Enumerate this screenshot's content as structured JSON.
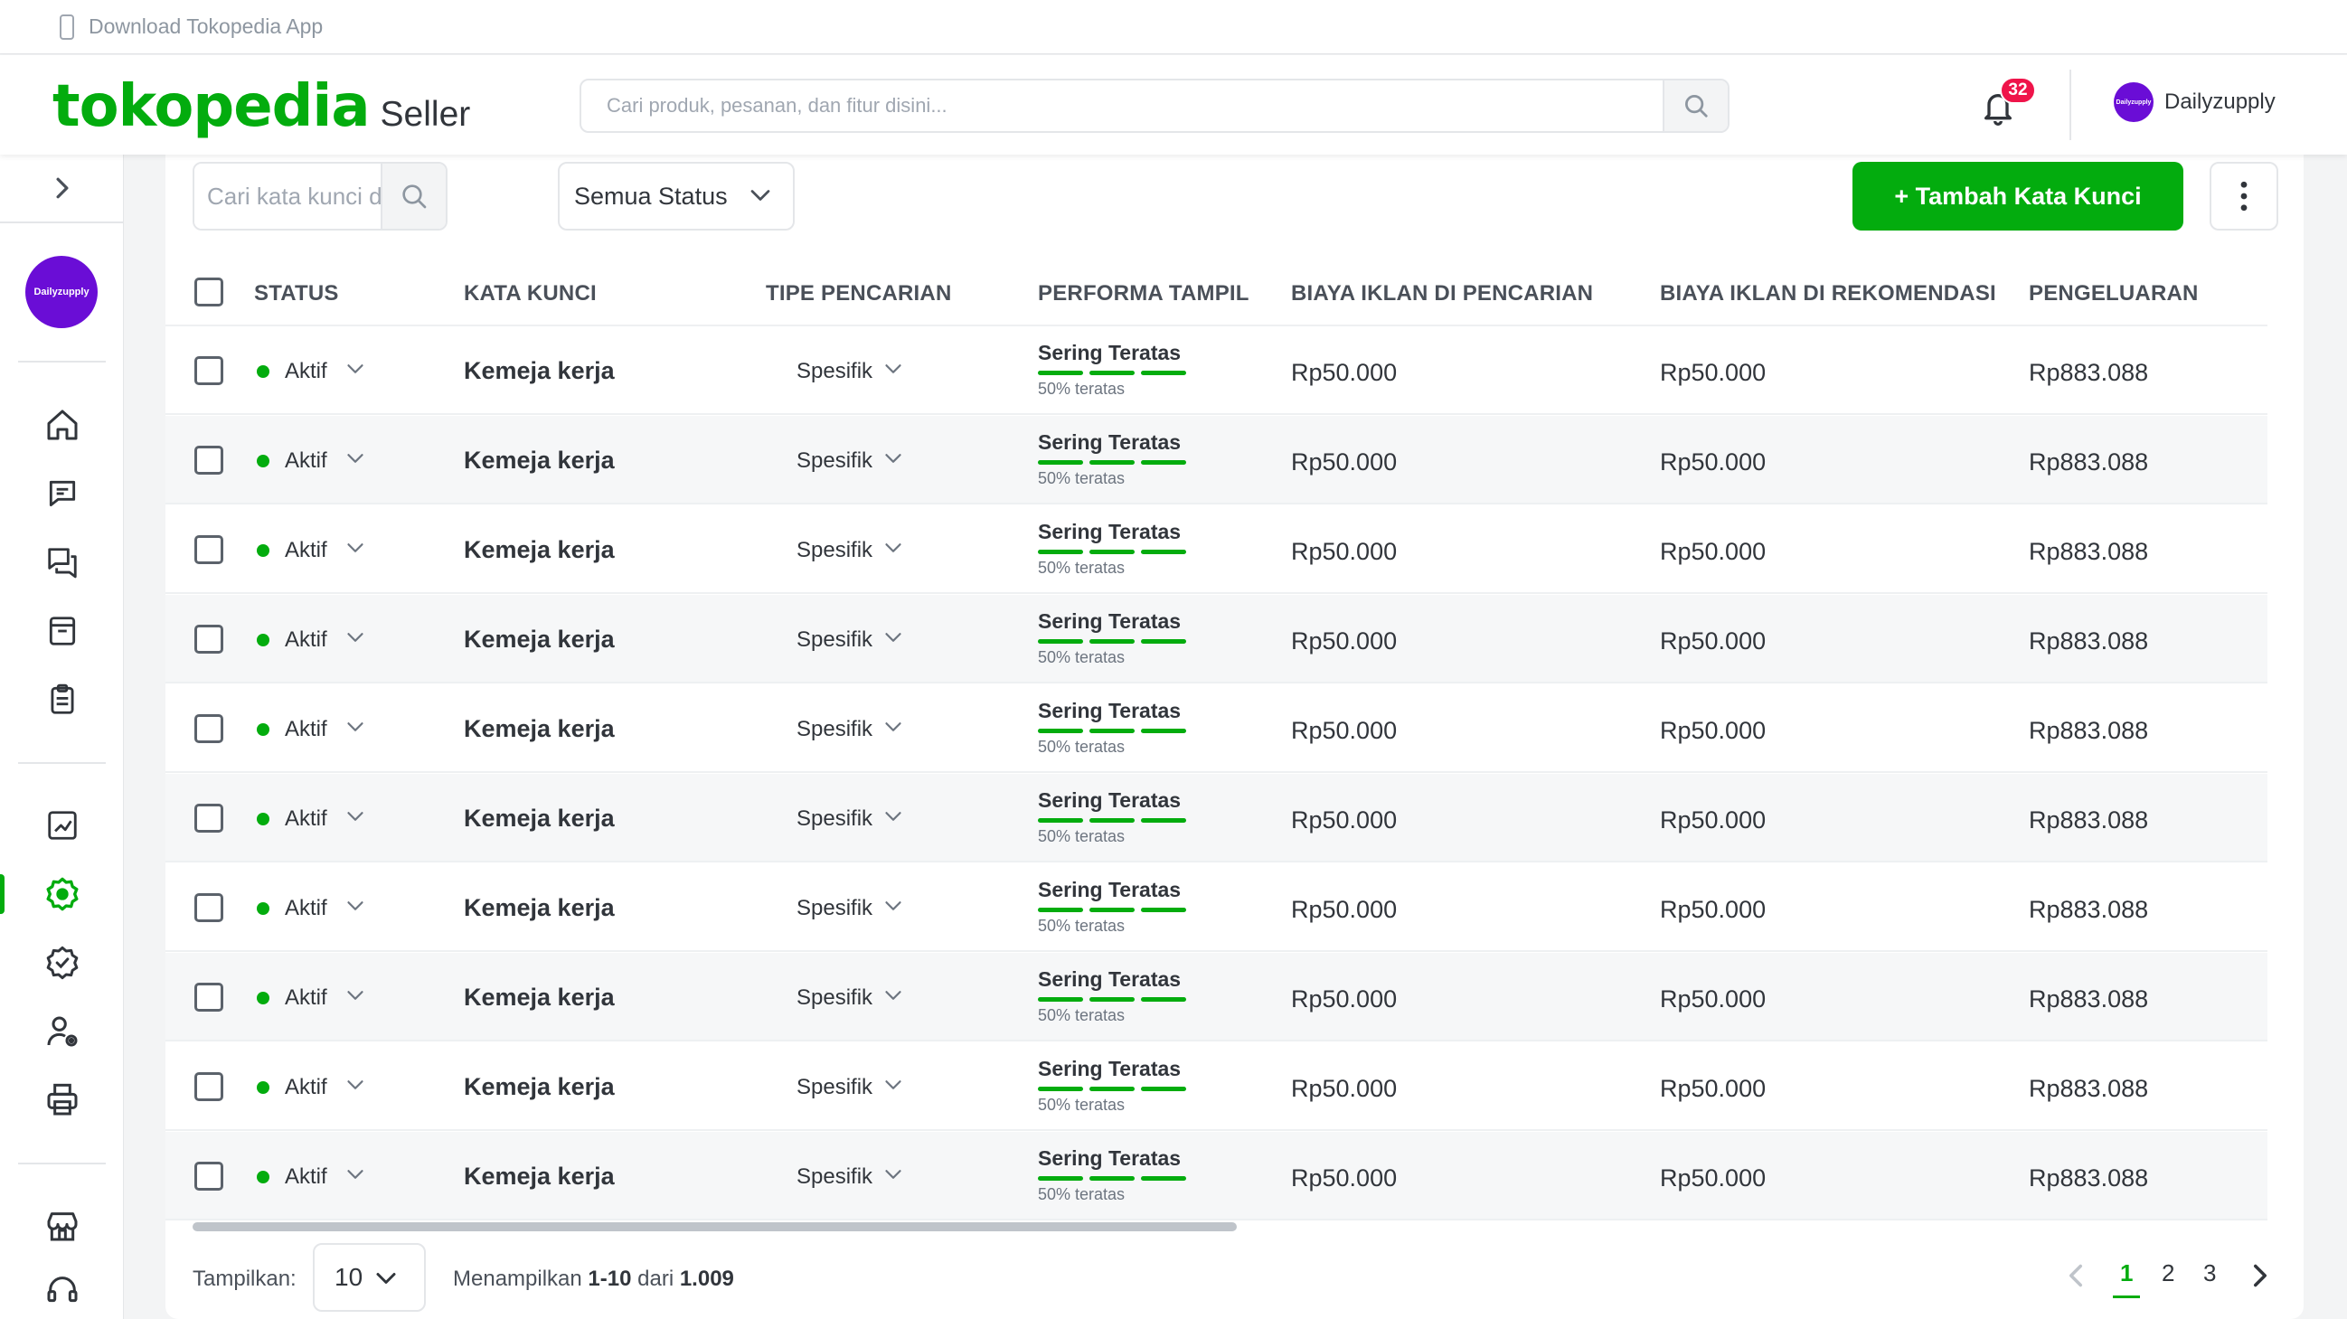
{
  "topstrip": {
    "download_label": "Download Tokopedia App",
    "icon": "phone-icon"
  },
  "header": {
    "logo_text": "tokopedia",
    "logo_suffix": "Seller",
    "search_placeholder": "Cari produk, pesanan, dan fitur disini...",
    "notification_count": "32",
    "shop_name": "Dailyzupply",
    "avatar_text": "Dailyzupply"
  },
  "sidebar": {
    "shop_avatar_text": "Dailyzupply",
    "icons": [
      "home-icon",
      "chat-icon",
      "discussion-icon",
      "product-box-icon",
      "order-list-icon",
      "statistic-icon",
      "ads-icon",
      "badge-icon",
      "user-gear-icon",
      "printer-icon",
      "shop-icon",
      "support-icon"
    ]
  },
  "toolbar": {
    "keyword_search_placeholder": "Cari kata kunci disini...",
    "status_filter": "Semua Status",
    "add_button": "+ Tambah Kata Kunci"
  },
  "table": {
    "headers": {
      "status": "STATUS",
      "keyword": "KATA KUNCI",
      "search_type": "TIPE PENCARIAN",
      "performance": "PERFORMA TAMPIL",
      "search_cost": "BIAYA IKLAN DI PENCARIAN",
      "reco_cost": "BIAYA IKLAN DI REKOMENDASI",
      "spending": "PENGELUARAN"
    },
    "rows": [
      {
        "status": "Aktif",
        "keyword": "Kemeja kerja",
        "type": "Spesifik",
        "perf_label": "Sering Teratas",
        "perf_sub": "50% teratas",
        "search_cost": "Rp50.000",
        "reco_cost": "Rp50.000",
        "spending": "Rp883.088"
      },
      {
        "status": "Aktif",
        "keyword": "Kemeja kerja",
        "type": "Spesifik",
        "perf_label": "Sering Teratas",
        "perf_sub": "50% teratas",
        "search_cost": "Rp50.000",
        "reco_cost": "Rp50.000",
        "spending": "Rp883.088"
      },
      {
        "status": "Aktif",
        "keyword": "Kemeja kerja",
        "type": "Spesifik",
        "perf_label": "Sering Teratas",
        "perf_sub": "50% teratas",
        "search_cost": "Rp50.000",
        "reco_cost": "Rp50.000",
        "spending": "Rp883.088"
      },
      {
        "status": "Aktif",
        "keyword": "Kemeja kerja",
        "type": "Spesifik",
        "perf_label": "Sering Teratas",
        "perf_sub": "50% teratas",
        "search_cost": "Rp50.000",
        "reco_cost": "Rp50.000",
        "spending": "Rp883.088"
      },
      {
        "status": "Aktif",
        "keyword": "Kemeja kerja",
        "type": "Spesifik",
        "perf_label": "Sering Teratas",
        "perf_sub": "50% teratas",
        "search_cost": "Rp50.000",
        "reco_cost": "Rp50.000",
        "spending": "Rp883.088"
      },
      {
        "status": "Aktif",
        "keyword": "Kemeja kerja",
        "type": "Spesifik",
        "perf_label": "Sering Teratas",
        "perf_sub": "50% teratas",
        "search_cost": "Rp50.000",
        "reco_cost": "Rp50.000",
        "spending": "Rp883.088"
      },
      {
        "status": "Aktif",
        "keyword": "Kemeja kerja",
        "type": "Spesifik",
        "perf_label": "Sering Teratas",
        "perf_sub": "50% teratas",
        "search_cost": "Rp50.000",
        "reco_cost": "Rp50.000",
        "spending": "Rp883.088"
      },
      {
        "status": "Aktif",
        "keyword": "Kemeja kerja",
        "type": "Spesifik",
        "perf_label": "Sering Teratas",
        "perf_sub": "50% teratas",
        "search_cost": "Rp50.000",
        "reco_cost": "Rp50.000",
        "spending": "Rp883.088"
      },
      {
        "status": "Aktif",
        "keyword": "Kemeja kerja",
        "type": "Spesifik",
        "perf_label": "Sering Teratas",
        "perf_sub": "50% teratas",
        "search_cost": "Rp50.000",
        "reco_cost": "Rp50.000",
        "spending": "Rp883.088"
      },
      {
        "status": "Aktif",
        "keyword": "Kemeja kerja",
        "type": "Spesifik",
        "perf_label": "Sering Teratas",
        "perf_sub": "50% teratas",
        "search_cost": "Rp50.000",
        "reco_cost": "Rp50.000",
        "spending": "Rp883.088"
      }
    ]
  },
  "footer": {
    "show_label": "Tampilkan:",
    "page_size": "10",
    "showing_prefix": "Menampilkan",
    "showing_range": "1-10",
    "showing_of": "dari",
    "showing_total": "1.009",
    "pages": [
      "1",
      "2",
      "3"
    ],
    "current_page": "1"
  },
  "colors": {
    "brand_green": "#03ac0e",
    "badge_red": "#ef144a",
    "avatar_purple": "#6a0dd6"
  }
}
